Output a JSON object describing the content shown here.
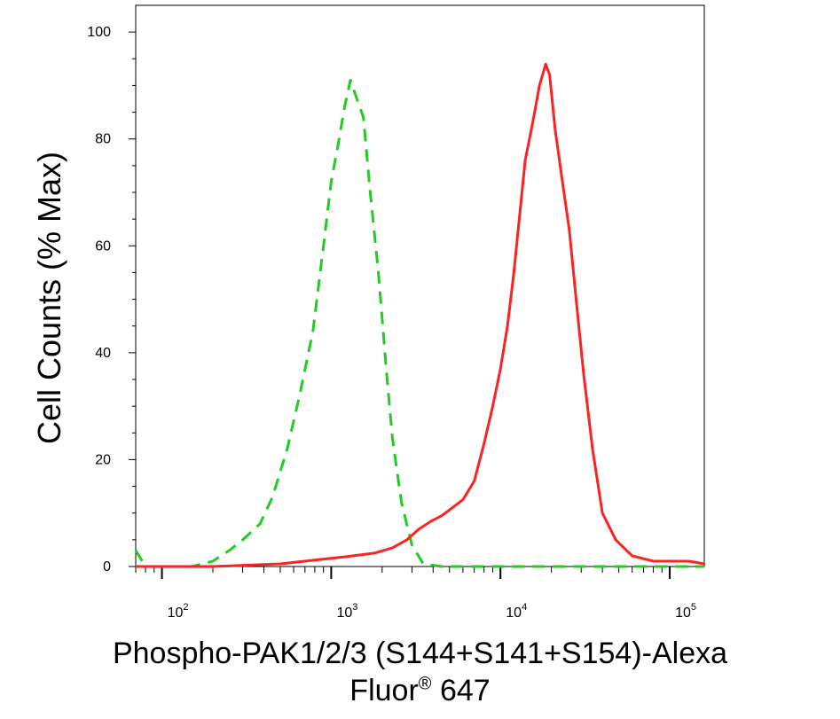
{
  "chart_data": {
    "type": "line",
    "ylabel": "Cell Counts (% Max)",
    "xlabel": {
      "line1": "Phospho-PAK1/2/3 (S144+S141+S154)-Alexa",
      "line2_prefix": "Fluor",
      "line2_sup": "®",
      "line2_suffix": " 647"
    },
    "x_scale": "log",
    "xlim": [
      70,
      160000
    ],
    "ylim": [
      0,
      105
    ],
    "yticks": [
      "0",
      "20",
      "40",
      "60",
      "80",
      "100"
    ],
    "xticks": [
      {
        "value": 100,
        "base": "10",
        "exp": "2"
      },
      {
        "value": 1000,
        "base": "10",
        "exp": "3"
      },
      {
        "value": 10000,
        "base": "10",
        "exp": "4"
      },
      {
        "value": 100000,
        "base": "10",
        "exp": "5"
      }
    ],
    "grid": false,
    "legend": "none",
    "series": [
      {
        "color": "#22cc22",
        "style": "dashed",
        "points": [
          [
            70,
            3
          ],
          [
            80,
            0
          ],
          [
            100,
            0
          ],
          [
            150,
            0
          ],
          [
            200,
            1
          ],
          [
            250,
            3
          ],
          [
            300,
            5
          ],
          [
            380,
            8
          ],
          [
            450,
            13
          ],
          [
            550,
            22
          ],
          [
            650,
            32
          ],
          [
            780,
            44
          ],
          [
            900,
            60
          ],
          [
            1000,
            72
          ],
          [
            1100,
            79
          ],
          [
            1200,
            86
          ],
          [
            1300,
            91
          ],
          [
            1400,
            88
          ],
          [
            1550,
            84
          ],
          [
            1700,
            70
          ],
          [
            1900,
            55
          ],
          [
            2100,
            38
          ],
          [
            2300,
            24
          ],
          [
            2600,
            12
          ],
          [
            3000,
            4
          ],
          [
            3500,
            0.5
          ],
          [
            4500,
            0
          ],
          [
            10000,
            0
          ],
          [
            50000,
            0
          ],
          [
            160000,
            0
          ]
        ]
      },
      {
        "color": "#ff2222",
        "style": "solid",
        "points": [
          [
            70,
            0
          ],
          [
            200,
            0
          ],
          [
            500,
            0.5
          ],
          [
            800,
            1.2
          ],
          [
            1200,
            1.8
          ],
          [
            1800,
            2.5
          ],
          [
            2300,
            3.5
          ],
          [
            2800,
            5
          ],
          [
            3300,
            7
          ],
          [
            3900,
            8.5
          ],
          [
            4500,
            9.5
          ],
          [
            5200,
            11
          ],
          [
            6000,
            12.5
          ],
          [
            7000,
            16
          ],
          [
            8000,
            23
          ],
          [
            9000,
            30
          ],
          [
            10000,
            37
          ],
          [
            11000,
            45
          ],
          [
            12000,
            55
          ],
          [
            13000,
            66
          ],
          [
            14000,
            76
          ],
          [
            15500,
            83
          ],
          [
            17000,
            90
          ],
          [
            18500,
            94
          ],
          [
            19500,
            92
          ],
          [
            21000,
            82
          ],
          [
            23000,
            73
          ],
          [
            25500,
            63
          ],
          [
            28000,
            50
          ],
          [
            31000,
            36
          ],
          [
            35000,
            22
          ],
          [
            40000,
            10
          ],
          [
            48000,
            5
          ],
          [
            60000,
            2
          ],
          [
            80000,
            1
          ],
          [
            100000,
            1
          ],
          [
            130000,
            1
          ],
          [
            160000,
            0.5
          ]
        ]
      }
    ]
  }
}
